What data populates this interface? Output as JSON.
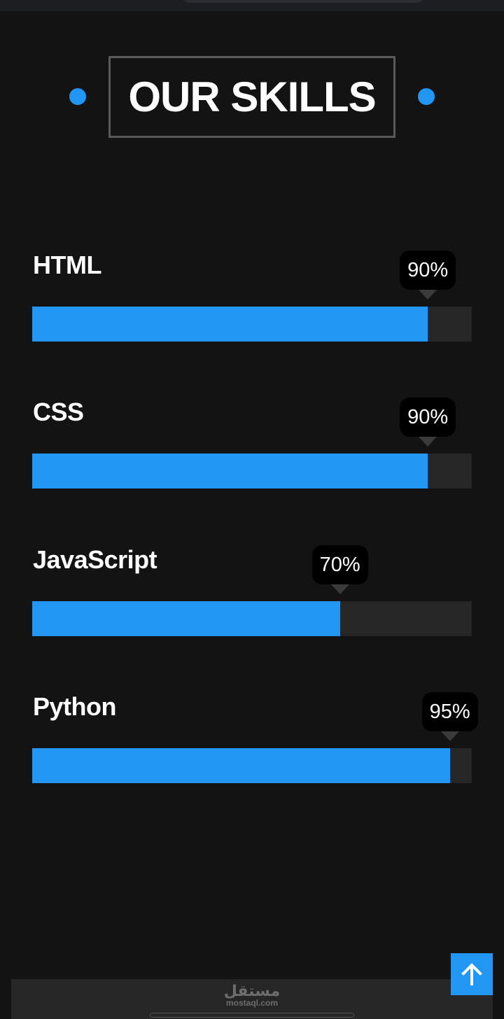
{
  "section": {
    "title": "OUR SKILLS"
  },
  "skills": [
    {
      "name": "HTML",
      "percent_label": "90%",
      "level": 90
    },
    {
      "name": "CSS",
      "percent_label": "90%",
      "level": 90
    },
    {
      "name": "JavaScript",
      "percent_label": "70%",
      "level": 70
    },
    {
      "name": "Python",
      "percent_label": "95%",
      "level": 95
    }
  ],
  "footer": {
    "watermark_ar": "مستقل",
    "watermark_en": "mostaql.com"
  },
  "colors": {
    "accent": "#2196f3",
    "background": "#131313",
    "track": "#262626",
    "tooltip": "#000000"
  },
  "icons": {
    "scroll_top": "arrow-up-icon",
    "bullet": "dot-icon"
  }
}
